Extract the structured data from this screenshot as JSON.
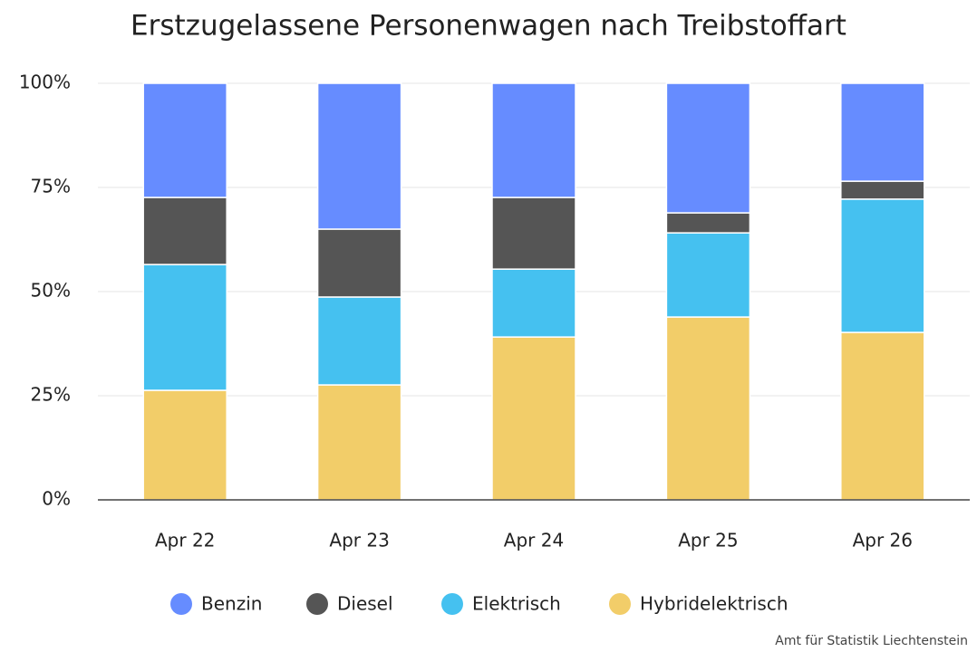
{
  "chart_data": {
    "type": "stacked_bar",
    "title": "Erstzugelassene Personenwagen nach Treibstoffart",
    "categories": [
      "Apr 22",
      "Apr 23",
      "Apr 24",
      "Apr 25",
      "Apr 26"
    ],
    "series": [
      {
        "name": "Benzin",
        "color": "#668cff",
        "values": [
          27.4,
          35.0,
          27.4,
          31.1,
          23.5
        ]
      },
      {
        "name": "Diesel",
        "color": "#555555",
        "values": [
          16.1,
          16.3,
          17.2,
          4.8,
          4.3
        ]
      },
      {
        "name": "Elektrisch",
        "color": "#45c1f0",
        "values": [
          30.2,
          21.1,
          16.3,
          20.2,
          32.0
        ]
      },
      {
        "name": "Hybridelektrisch",
        "color": "#f2cd69",
        "values": [
          26.3,
          27.6,
          39.1,
          43.9,
          40.2
        ]
      }
    ],
    "ylim": [
      0,
      100
    ],
    "yticks": [
      {
        "value": 0,
        "label": "0%"
      },
      {
        "value": 25,
        "label": "25%"
      },
      {
        "value": 50,
        "label": "50%"
      },
      {
        "value": 75,
        "label": "75%"
      },
      {
        "value": 100,
        "label": "100%"
      }
    ],
    "grid": true,
    "legend": "bottom",
    "source": "Amt für Statistik Liechtenstein"
  }
}
